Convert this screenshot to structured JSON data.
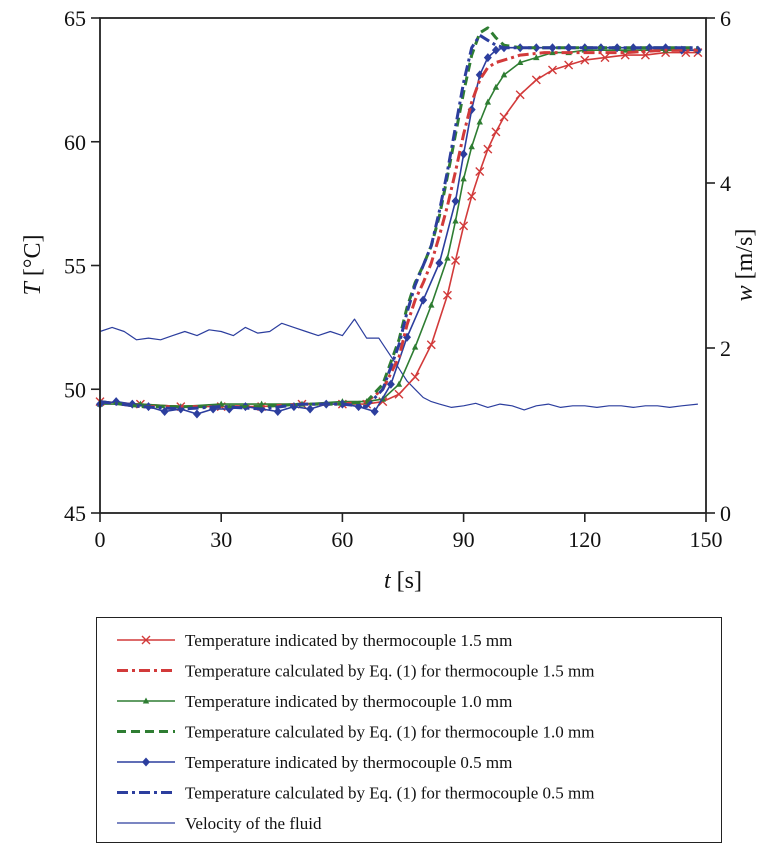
{
  "chart_data": {
    "type": "line",
    "xlabel_italic": "t",
    "xlabel_unit": "[s]",
    "ylabel_italic": "T",
    "ylabel_unit": "[°C]",
    "y2label_italic": "w",
    "y2label_unit": "[m/s]",
    "xlim": [
      0,
      150
    ],
    "ylim": [
      45,
      65
    ],
    "y2lim": [
      0,
      6
    ],
    "xticks": [
      "0",
      "30",
      "60",
      "90",
      "120",
      "150"
    ],
    "yticks": [
      "45",
      "50",
      "55",
      "60",
      "65"
    ],
    "y2ticks": [
      "0",
      "2",
      "4",
      "6"
    ],
    "grid": false,
    "legend_position": "below",
    "series": [
      {
        "name": "Temperature indicated by thermocouple 1.5 mm",
        "axis": "left",
        "color": "#d23a3a",
        "style": "solid",
        "marker": "x",
        "x": [
          0,
          10,
          20,
          30,
          40,
          50,
          60,
          66,
          70,
          74,
          78,
          82,
          86,
          88,
          90,
          92,
          94,
          96,
          98,
          100,
          104,
          108,
          112,
          116,
          120,
          125,
          130,
          135,
          140,
          145,
          148
        ],
        "y": [
          49.5,
          49.4,
          49.3,
          49.3,
          49.3,
          49.4,
          49.4,
          49.4,
          49.5,
          49.8,
          50.5,
          51.8,
          53.8,
          55.2,
          56.6,
          57.8,
          58.8,
          59.7,
          60.4,
          61.0,
          61.9,
          62.5,
          62.9,
          63.1,
          63.3,
          63.4,
          63.5,
          63.5,
          63.6,
          63.6,
          63.6
        ]
      },
      {
        "name": "Temperature calculated by Eq. (1) for thermocouple 1.5 mm",
        "axis": "left",
        "color": "#d23a3a",
        "style": "dashdot",
        "marker": "none",
        "x": [
          0,
          10,
          20,
          30,
          40,
          50,
          60,
          66,
          70,
          74,
          76,
          78,
          80,
          82,
          84,
          86,
          88,
          90,
          92,
          94,
          96,
          98,
          100,
          104,
          110,
          120,
          130,
          140,
          148
        ],
        "y": [
          49.5,
          49.3,
          49.3,
          49.3,
          49.3,
          49.4,
          49.4,
          49.5,
          50.0,
          51.3,
          52.6,
          53.6,
          54.3,
          55.1,
          56.2,
          57.4,
          58.8,
          60.3,
          61.6,
          62.5,
          63.0,
          63.2,
          63.3,
          63.5,
          63.6,
          63.6,
          63.6,
          63.7,
          63.7
        ]
      },
      {
        "name": "Temperature indicated by thermocouple 1.0 mm",
        "axis": "left",
        "color": "#2e7d32",
        "style": "solid",
        "marker": "triangle",
        "x": [
          0,
          10,
          20,
          30,
          40,
          50,
          60,
          66,
          70,
          74,
          78,
          82,
          86,
          88,
          90,
          92,
          94,
          96,
          98,
          100,
          104,
          108,
          112,
          116,
          120,
          130,
          140,
          148
        ],
        "y": [
          49.4,
          49.4,
          49.3,
          49.4,
          49.4,
          49.4,
          49.5,
          49.5,
          49.6,
          50.2,
          51.7,
          53.4,
          55.3,
          56.8,
          58.5,
          59.8,
          60.8,
          61.6,
          62.2,
          62.7,
          63.2,
          63.4,
          63.6,
          63.6,
          63.7,
          63.7,
          63.7,
          63.7
        ]
      },
      {
        "name": "Temperature calculated by Eq. (1) for thermocouple 1.0 mm",
        "axis": "left",
        "color": "#2e7d32",
        "style": "dashed",
        "marker": "none",
        "x": [
          0,
          10,
          20,
          30,
          40,
          50,
          60,
          66,
          70,
          74,
          76,
          78,
          80,
          82,
          84,
          86,
          88,
          90,
          92,
          94,
          96,
          98,
          100,
          104,
          110,
          120,
          130,
          140,
          148
        ],
        "y": [
          49.5,
          49.3,
          49.3,
          49.3,
          49.3,
          49.4,
          49.4,
          49.5,
          50.2,
          52.0,
          53.3,
          54.3,
          55.0,
          55.8,
          57.0,
          58.6,
          60.3,
          62.0,
          63.5,
          64.4,
          64.6,
          64.2,
          63.9,
          63.8,
          63.8,
          63.8,
          63.8,
          63.8,
          63.8
        ]
      },
      {
        "name": "Temperature indicated by thermocouple 0.5 mm",
        "axis": "left",
        "color": "#2c3e9e",
        "style": "solid",
        "marker": "diamond",
        "x": [
          0,
          4,
          8,
          12,
          16,
          20,
          24,
          28,
          32,
          36,
          40,
          44,
          48,
          52,
          56,
          60,
          64,
          68,
          72,
          76,
          80,
          84,
          88,
          90,
          92,
          94,
          96,
          98,
          100,
          104,
          108,
          112,
          116,
          120,
          124,
          128,
          132,
          136,
          140,
          144,
          148
        ],
        "y": [
          49.4,
          49.5,
          49.4,
          49.3,
          49.1,
          49.2,
          49.0,
          49.2,
          49.2,
          49.3,
          49.2,
          49.1,
          49.3,
          49.2,
          49.4,
          49.4,
          49.3,
          49.1,
          50.2,
          52.1,
          53.6,
          55.1,
          57.6,
          59.5,
          61.3,
          62.7,
          63.4,
          63.7,
          63.8,
          63.8,
          63.8,
          63.8,
          63.8,
          63.8,
          63.8,
          63.8,
          63.8,
          63.8,
          63.8,
          63.7,
          63.7
        ]
      },
      {
        "name": "Temperature calculated by Eq. (1) for thermocouple 0.5 mm",
        "axis": "left",
        "color": "#2c3e9e",
        "style": "dashdot",
        "marker": "none",
        "x": [
          0,
          10,
          20,
          30,
          40,
          50,
          60,
          66,
          70,
          74,
          76,
          78,
          80,
          82,
          84,
          86,
          88,
          90,
          92,
          94,
          96,
          98,
          100,
          104,
          110,
          120,
          130,
          140,
          148
        ],
        "y": [
          49.5,
          49.3,
          49.2,
          49.3,
          49.2,
          49.4,
          49.4,
          49.3,
          50.0,
          51.8,
          53.1,
          54.2,
          55.0,
          55.8,
          57.2,
          58.8,
          60.6,
          62.4,
          63.8,
          64.3,
          64.1,
          63.9,
          63.8,
          63.8,
          63.8,
          63.8,
          63.8,
          63.8,
          63.8
        ]
      },
      {
        "name": "Velocity of the fluid",
        "axis": "right",
        "color": "#2c3e9e",
        "style": "thin",
        "marker": "none",
        "x": [
          0,
          3,
          6,
          9,
          12,
          15,
          18,
          21,
          24,
          27,
          30,
          33,
          36,
          39,
          42,
          45,
          48,
          51,
          54,
          57,
          60,
          63,
          66,
          69,
          72,
          74,
          76,
          78,
          80,
          82,
          84,
          87,
          90,
          93,
          96,
          99,
          102,
          105,
          108,
          111,
          114,
          117,
          120,
          123,
          126,
          129,
          132,
          135,
          138,
          141,
          144,
          148
        ],
        "y": [
          2.2,
          2.25,
          2.2,
          2.1,
          2.12,
          2.1,
          2.15,
          2.2,
          2.15,
          2.22,
          2.2,
          2.15,
          2.25,
          2.18,
          2.2,
          2.3,
          2.25,
          2.2,
          2.15,
          2.2,
          2.15,
          2.35,
          2.12,
          2.12,
          1.9,
          1.75,
          1.6,
          1.5,
          1.4,
          1.35,
          1.32,
          1.28,
          1.3,
          1.33,
          1.28,
          1.32,
          1.3,
          1.25,
          1.3,
          1.32,
          1.28,
          1.3,
          1.3,
          1.28,
          1.3,
          1.3,
          1.28,
          1.3,
          1.3,
          1.28,
          1.3,
          1.32
        ]
      }
    ]
  }
}
